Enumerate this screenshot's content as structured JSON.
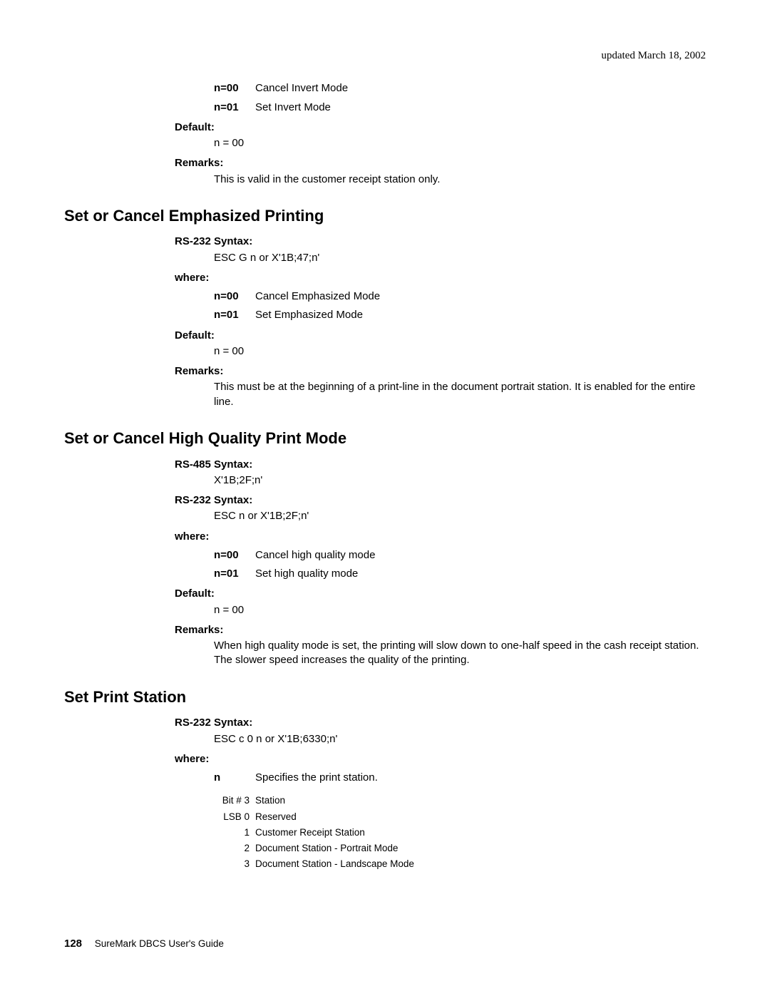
{
  "header": {
    "updated": "updated March 18, 2002"
  },
  "sec1_opts": [
    {
      "k": "n=00",
      "v": "Cancel Invert Mode"
    },
    {
      "k": "n=01",
      "v": "Set Invert Mode"
    }
  ],
  "sec1": {
    "default_label": "Default:",
    "default_value": "n = 00",
    "remarks_label": "Remarks:",
    "remarks_value": "This is valid in the customer receipt station only."
  },
  "sec2": {
    "heading": "Set or Cancel Emphasized Printing",
    "rs232_label": "RS-232 Syntax:",
    "rs232_value": "ESC G n or X'1B;47;n'",
    "where_label": "where:",
    "default_label": "Default:",
    "default_value": "n = 00",
    "remarks_label": "Remarks:",
    "remarks_value": "This must be at the beginning of a print-line in the document portrait station. It is enabled for the entire line."
  },
  "sec2_opts": [
    {
      "k": "n=00",
      "v": "Cancel Emphasized Mode"
    },
    {
      "k": "n=01",
      "v": "Set Emphasized Mode"
    }
  ],
  "sec3": {
    "heading": "Set or Cancel High Quality Print Mode",
    "rs485_label": "RS-485 Syntax:",
    "rs485_value": "X'1B;2F;n'",
    "rs232_label": "RS-232 Syntax:",
    "rs232_value": "ESC n or X'1B;2F;n'",
    "where_label": "where:",
    "default_label": "Default:",
    "default_value": "n = 00",
    "remarks_label": "Remarks:",
    "remarks_value": "When high quality mode is set, the printing will slow down to one-half speed in the cash receipt station. The slower speed increases the quality of the printing."
  },
  "sec3_opts": [
    {
      "k": "n=00",
      "v": "Cancel high quality mode"
    },
    {
      "k": "n=01",
      "v": "Set high quality mode"
    }
  ],
  "sec4": {
    "heading": "Set Print Station",
    "rs232_label": "RS-232 Syntax:",
    "rs232_value": "ESC c 0 n or X'1B;6330;n'",
    "where_label": "where:",
    "n_key": "n",
    "n_val": "Specifies the print station."
  },
  "bits": {
    "h1": "Bit # 3",
    "h2": "Station",
    "r0a": "LSB 0",
    "r0b": "Reserved",
    "r1a": "1",
    "r1b": "Customer Receipt Station",
    "r2a": "2",
    "r2b": "Document Station - Portrait Mode",
    "r3a": "3",
    "r3b": "Document Station - Landscape Mode"
  },
  "footer": {
    "page": "128",
    "book": "SureMark DBCS User's Guide"
  }
}
